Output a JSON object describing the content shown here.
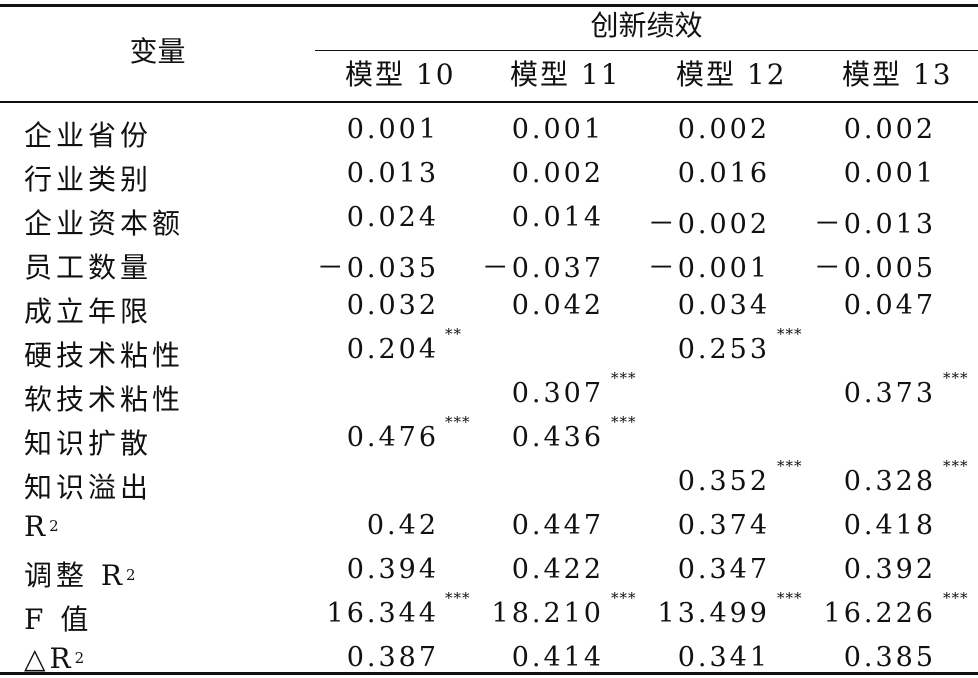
{
  "header": {
    "variable_label": "变量",
    "group_label": "创新绩效",
    "models": [
      "模型 10",
      "模型 11",
      "模型 12",
      "模型 13"
    ]
  },
  "rows": [
    {
      "label": "企业省份",
      "values": [
        "0.001",
        "0.001",
        "0.002",
        "0.002"
      ],
      "sig": [
        "",
        "",
        "",
        ""
      ]
    },
    {
      "label": "行业类别",
      "values": [
        "0.013",
        "0.002",
        "0.016",
        "0.001"
      ],
      "sig": [
        "",
        "",
        "",
        ""
      ]
    },
    {
      "label": "企业资本额",
      "values": [
        "0.024",
        "0.014",
        "－0.002",
        "－0.013"
      ],
      "sig": [
        "",
        "",
        "",
        ""
      ]
    },
    {
      "label": "员工数量",
      "values": [
        "－0.035",
        "－0.037",
        "－0.001",
        "－0.005"
      ],
      "sig": [
        "",
        "",
        "",
        ""
      ]
    },
    {
      "label": "成立年限",
      "values": [
        "0.032",
        "0.042",
        "0.034",
        "0.047"
      ],
      "sig": [
        "",
        "",
        "",
        ""
      ]
    },
    {
      "label": "硬技术粘性",
      "values": [
        "0.204",
        "",
        "0.253",
        ""
      ],
      "sig": [
        "**",
        "",
        "***",
        ""
      ]
    },
    {
      "label": "软技术粘性",
      "values": [
        "",
        "0.307",
        "",
        "0.373"
      ],
      "sig": [
        "",
        "***",
        "",
        "***"
      ]
    },
    {
      "label": "知识扩散",
      "values": [
        "0.476",
        "0.436",
        "",
        ""
      ],
      "sig": [
        "***",
        "***",
        "",
        ""
      ]
    },
    {
      "label": "知识溢出",
      "values": [
        "",
        "",
        "0.352",
        "0.328"
      ],
      "sig": [
        "",
        "",
        "***",
        "***"
      ]
    },
    {
      "label_main": "R",
      "label_sup": "2",
      "values": [
        "0.42",
        "0.447",
        "0.374",
        "0.418"
      ],
      "sig": [
        "",
        "",
        "",
        ""
      ]
    },
    {
      "label_main": "调整 R",
      "label_sup": "2",
      "values": [
        "0.394",
        "0.422",
        "0.347",
        "0.392"
      ],
      "sig": [
        "",
        "",
        "",
        ""
      ]
    },
    {
      "label": "F 值",
      "values": [
        "16.344",
        "18.210",
        "13.499",
        "16.226"
      ],
      "sig": [
        "***",
        "***",
        "***",
        "***"
      ]
    },
    {
      "label_main": "△R",
      "label_sup": "2",
      "values": [
        "0.387",
        "0.414",
        "0.341",
        "0.385"
      ],
      "sig": [
        "",
        "",
        "",
        ""
      ]
    }
  ]
}
